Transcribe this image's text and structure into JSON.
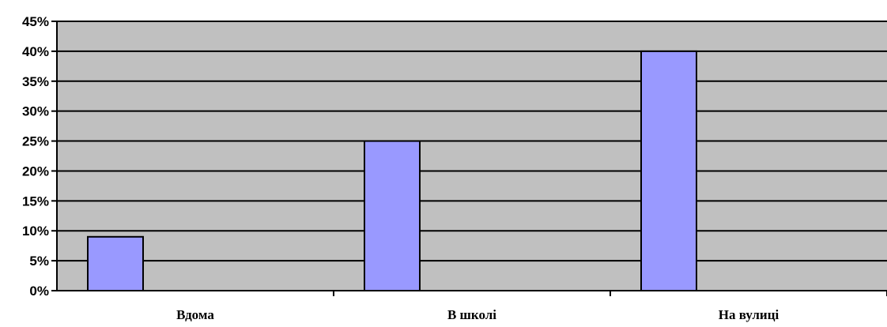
{
  "chart_data": {
    "type": "bar",
    "categories": [
      "Вдома",
      "В школі",
      "На вулиці"
    ],
    "values": [
      9,
      25,
      40
    ],
    "y_tick_labels": [
      "0%",
      "5%",
      "10%",
      "15%",
      "20%",
      "25%",
      "30%",
      "35%",
      "40%",
      "45%"
    ],
    "y_ticks": [
      0,
      5,
      10,
      15,
      20,
      25,
      30,
      35,
      40,
      45
    ],
    "ylim": [
      0,
      45
    ],
    "grid": true,
    "legend": "none",
    "colors": {
      "plot_background": "#c0c0c0",
      "bar_fill": "#9999ff",
      "bar_stroke": "#000000",
      "gridline": "#000000"
    }
  }
}
